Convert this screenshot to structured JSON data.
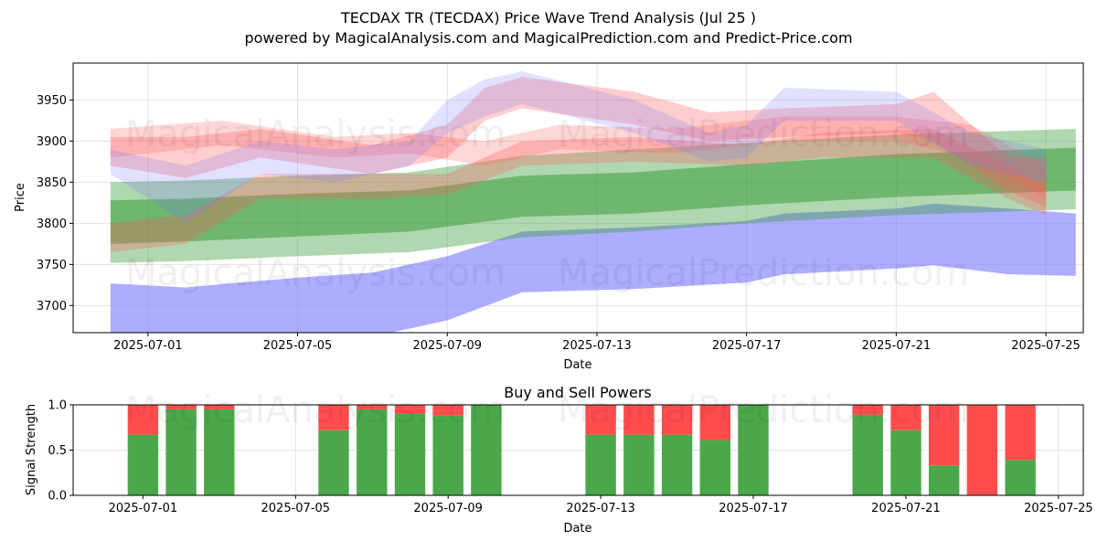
{
  "title_line1": "TECDAX TR (TECDAX) Price Wave Trend Analysis (Jul 25 )",
  "title_line2": "powered by MagicalAnalysis.com and MagicalPrediction.com and Predict-Price.com",
  "watermarks": [
    "MagicalAnalysis.com",
    "MagicalPrediction.com"
  ],
  "colors": {
    "green": "#3a9a3a",
    "blue": "#7777ff",
    "red": "#ff5a5a",
    "bar_green": "#4aa84a",
    "bar_red": "#ff4d4d"
  },
  "chart_data": [
    {
      "type": "area",
      "title": "",
      "xlabel": "Date",
      "ylabel": "Price",
      "ylim": [
        3667,
        3995
      ],
      "xlim": [
        "2025-06-29",
        "2025-07-26"
      ],
      "x_ticks": [
        "2025-07-01",
        "2025-07-05",
        "2025-07-09",
        "2025-07-13",
        "2025-07-17",
        "2025-07-21",
        "2025-07-25"
      ],
      "y_ticks": [
        3700,
        3750,
        3800,
        3850,
        3900,
        3950
      ],
      "grid": true,
      "bands": [
        {
          "name": "blue-lower-band",
          "color": "blue",
          "opacity": 0.6,
          "x": [
            "2025-06-30",
            "2025-07-02",
            "2025-07-05",
            "2025-07-07",
            "2025-07-09",
            "2025-07-11",
            "2025-07-14",
            "2025-07-17",
            "2025-07-18",
            "2025-07-21",
            "2025-07-22",
            "2025-07-24",
            "2025-07-25.8"
          ],
          "upper": [
            3727,
            3722,
            3734,
            3740,
            3760,
            3790,
            3795,
            3803,
            3812,
            3818,
            3824,
            3818,
            3812
          ],
          "lower": [
            3662,
            3655,
            3658,
            3662,
            3682,
            3716,
            3720,
            3728,
            3738,
            3745,
            3749,
            3738,
            3736
          ]
        },
        {
          "name": "green-wide-band",
          "color": "green",
          "opacity": 0.4,
          "x": [
            "2025-06-30",
            "2025-07-02",
            "2025-07-05",
            "2025-07-08",
            "2025-07-11",
            "2025-07-14",
            "2025-07-17",
            "2025-07-21",
            "2025-07-25.8"
          ],
          "upper": [
            3850,
            3852,
            3858,
            3862,
            3882,
            3890,
            3898,
            3908,
            3915
          ],
          "lower": [
            3752,
            3754,
            3760,
            3765,
            3783,
            3790,
            3800,
            3810,
            3817
          ]
        },
        {
          "name": "green-mid-band",
          "color": "green",
          "opacity": 0.55,
          "x": [
            "2025-06-30",
            "2025-07-02",
            "2025-07-05",
            "2025-07-08",
            "2025-07-11",
            "2025-07-14",
            "2025-07-17",
            "2025-07-21",
            "2025-07-25.8"
          ],
          "upper": [
            3828,
            3830,
            3836,
            3840,
            3858,
            3862,
            3872,
            3884,
            3892
          ],
          "lower": [
            3775,
            3778,
            3784,
            3790,
            3808,
            3812,
            3822,
            3832,
            3840
          ]
        },
        {
          "name": "red-wave-band-1",
          "color": "red",
          "opacity": 0.3,
          "x": [
            "2025-06-30",
            "2025-07-02",
            "2025-07-04",
            "2025-07-07",
            "2025-07-09",
            "2025-07-10",
            "2025-07-11",
            "2025-07-14",
            "2025-07-16",
            "2025-07-18",
            "2025-07-21",
            "2025-07-22",
            "2025-07-24",
            "2025-07-25"
          ],
          "upper": [
            3905,
            3905,
            3915,
            3895,
            3920,
            3965,
            3978,
            3960,
            3935,
            3940,
            3945,
            3960,
            3880,
            3880
          ],
          "lower": [
            3870,
            3855,
            3880,
            3860,
            3880,
            3925,
            3940,
            3920,
            3900,
            3905,
            3910,
            3900,
            3840,
            3820
          ]
        },
        {
          "name": "red-wave-band-2",
          "color": "red",
          "opacity": 0.25,
          "x": [
            "2025-06-30",
            "2025-07-03",
            "2025-07-06",
            "2025-07-08",
            "2025-07-10",
            "2025-07-12",
            "2025-07-15",
            "2025-07-18",
            "2025-07-21",
            "2025-07-23",
            "2025-07-25"
          ],
          "upper": [
            3915,
            3925,
            3905,
            3910,
            3900,
            3920,
            3915,
            3930,
            3930,
            3920,
            3870
          ],
          "lower": [
            3880,
            3895,
            3880,
            3885,
            3870,
            3890,
            3885,
            3900,
            3900,
            3880,
            3830
          ]
        },
        {
          "name": "red-wave-band-3",
          "color": "red",
          "opacity": 0.3,
          "x": [
            "2025-06-30",
            "2025-07-02",
            "2025-07-04",
            "2025-07-07",
            "2025-07-09",
            "2025-07-11",
            "2025-07-14",
            "2025-07-17",
            "2025-07-19",
            "2025-07-22",
            "2025-07-24",
            "2025-07-25"
          ],
          "upper": [
            3800,
            3810,
            3860,
            3860,
            3860,
            3900,
            3905,
            3895,
            3910,
            3915,
            3870,
            3845
          ],
          "lower": [
            3765,
            3775,
            3830,
            3830,
            3835,
            3870,
            3875,
            3870,
            3880,
            3880,
            3830,
            3810
          ]
        },
        {
          "name": "blue-wave-band",
          "color": "blue",
          "opacity": 0.22,
          "x": [
            "2025-06-30",
            "2025-07-02",
            "2025-07-04",
            "2025-07-06",
            "2025-07-08",
            "2025-07-09",
            "2025-07-10",
            "2025-07-11",
            "2025-07-14",
            "2025-07-16",
            "2025-07-17",
            "2025-07-18",
            "2025-07-21",
            "2025-07-23",
            "2025-07-25"
          ],
          "upper": [
            3890,
            3870,
            3900,
            3890,
            3900,
            3950,
            3975,
            3985,
            3950,
            3910,
            3920,
            3965,
            3960,
            3910,
            3890
          ],
          "lower": [
            3860,
            3800,
            3860,
            3850,
            3870,
            3910,
            3930,
            3945,
            3910,
            3875,
            3880,
            3925,
            3925,
            3870,
            3850
          ]
        }
      ]
    },
    {
      "type": "bar",
      "title": "Buy and Sell Powers",
      "xlabel": "Date",
      "ylabel": "Signal Strength",
      "ylim": [
        0,
        1
      ],
      "y_ticks": [
        "0.0",
        "0.5",
        "1.0"
      ],
      "x_ticks": [
        "2025-07-01",
        "2025-07-05",
        "2025-07-09",
        "2025-07-13",
        "2025-07-17",
        "2025-07-21",
        "2025-07-25"
      ],
      "series": [
        {
          "name": "Buy",
          "color": "green",
          "x": [
            "2025-07-01",
            "2025-07-02",
            "2025-07-03",
            "2025-07-06",
            "2025-07-07",
            "2025-07-08",
            "2025-07-09",
            "2025-07-10",
            "2025-07-13",
            "2025-07-14",
            "2025-07-15",
            "2025-07-16",
            "2025-07-17",
            "2025-07-20",
            "2025-07-21",
            "2025-07-22",
            "2025-07-23",
            "2025-07-24"
          ],
          "values": [
            0.67,
            0.95,
            0.95,
            0.72,
            0.95,
            0.9,
            0.88,
            1.0,
            0.67,
            0.67,
            0.67,
            0.61,
            1.0,
            0.89,
            0.72,
            0.33,
            0.0,
            0.39
          ]
        },
        {
          "name": "Sell",
          "color": "red",
          "x": [
            "2025-07-01",
            "2025-07-02",
            "2025-07-03",
            "2025-07-06",
            "2025-07-07",
            "2025-07-08",
            "2025-07-09",
            "2025-07-10",
            "2025-07-13",
            "2025-07-14",
            "2025-07-15",
            "2025-07-16",
            "2025-07-17",
            "2025-07-20",
            "2025-07-21",
            "2025-07-22",
            "2025-07-23",
            "2025-07-24"
          ],
          "values": [
            0.33,
            0.05,
            0.05,
            0.28,
            0.05,
            0.1,
            0.12,
            0.0,
            0.33,
            0.33,
            0.33,
            0.39,
            0.0,
            0.11,
            0.28,
            0.67,
            1.0,
            0.61
          ]
        }
      ]
    }
  ]
}
